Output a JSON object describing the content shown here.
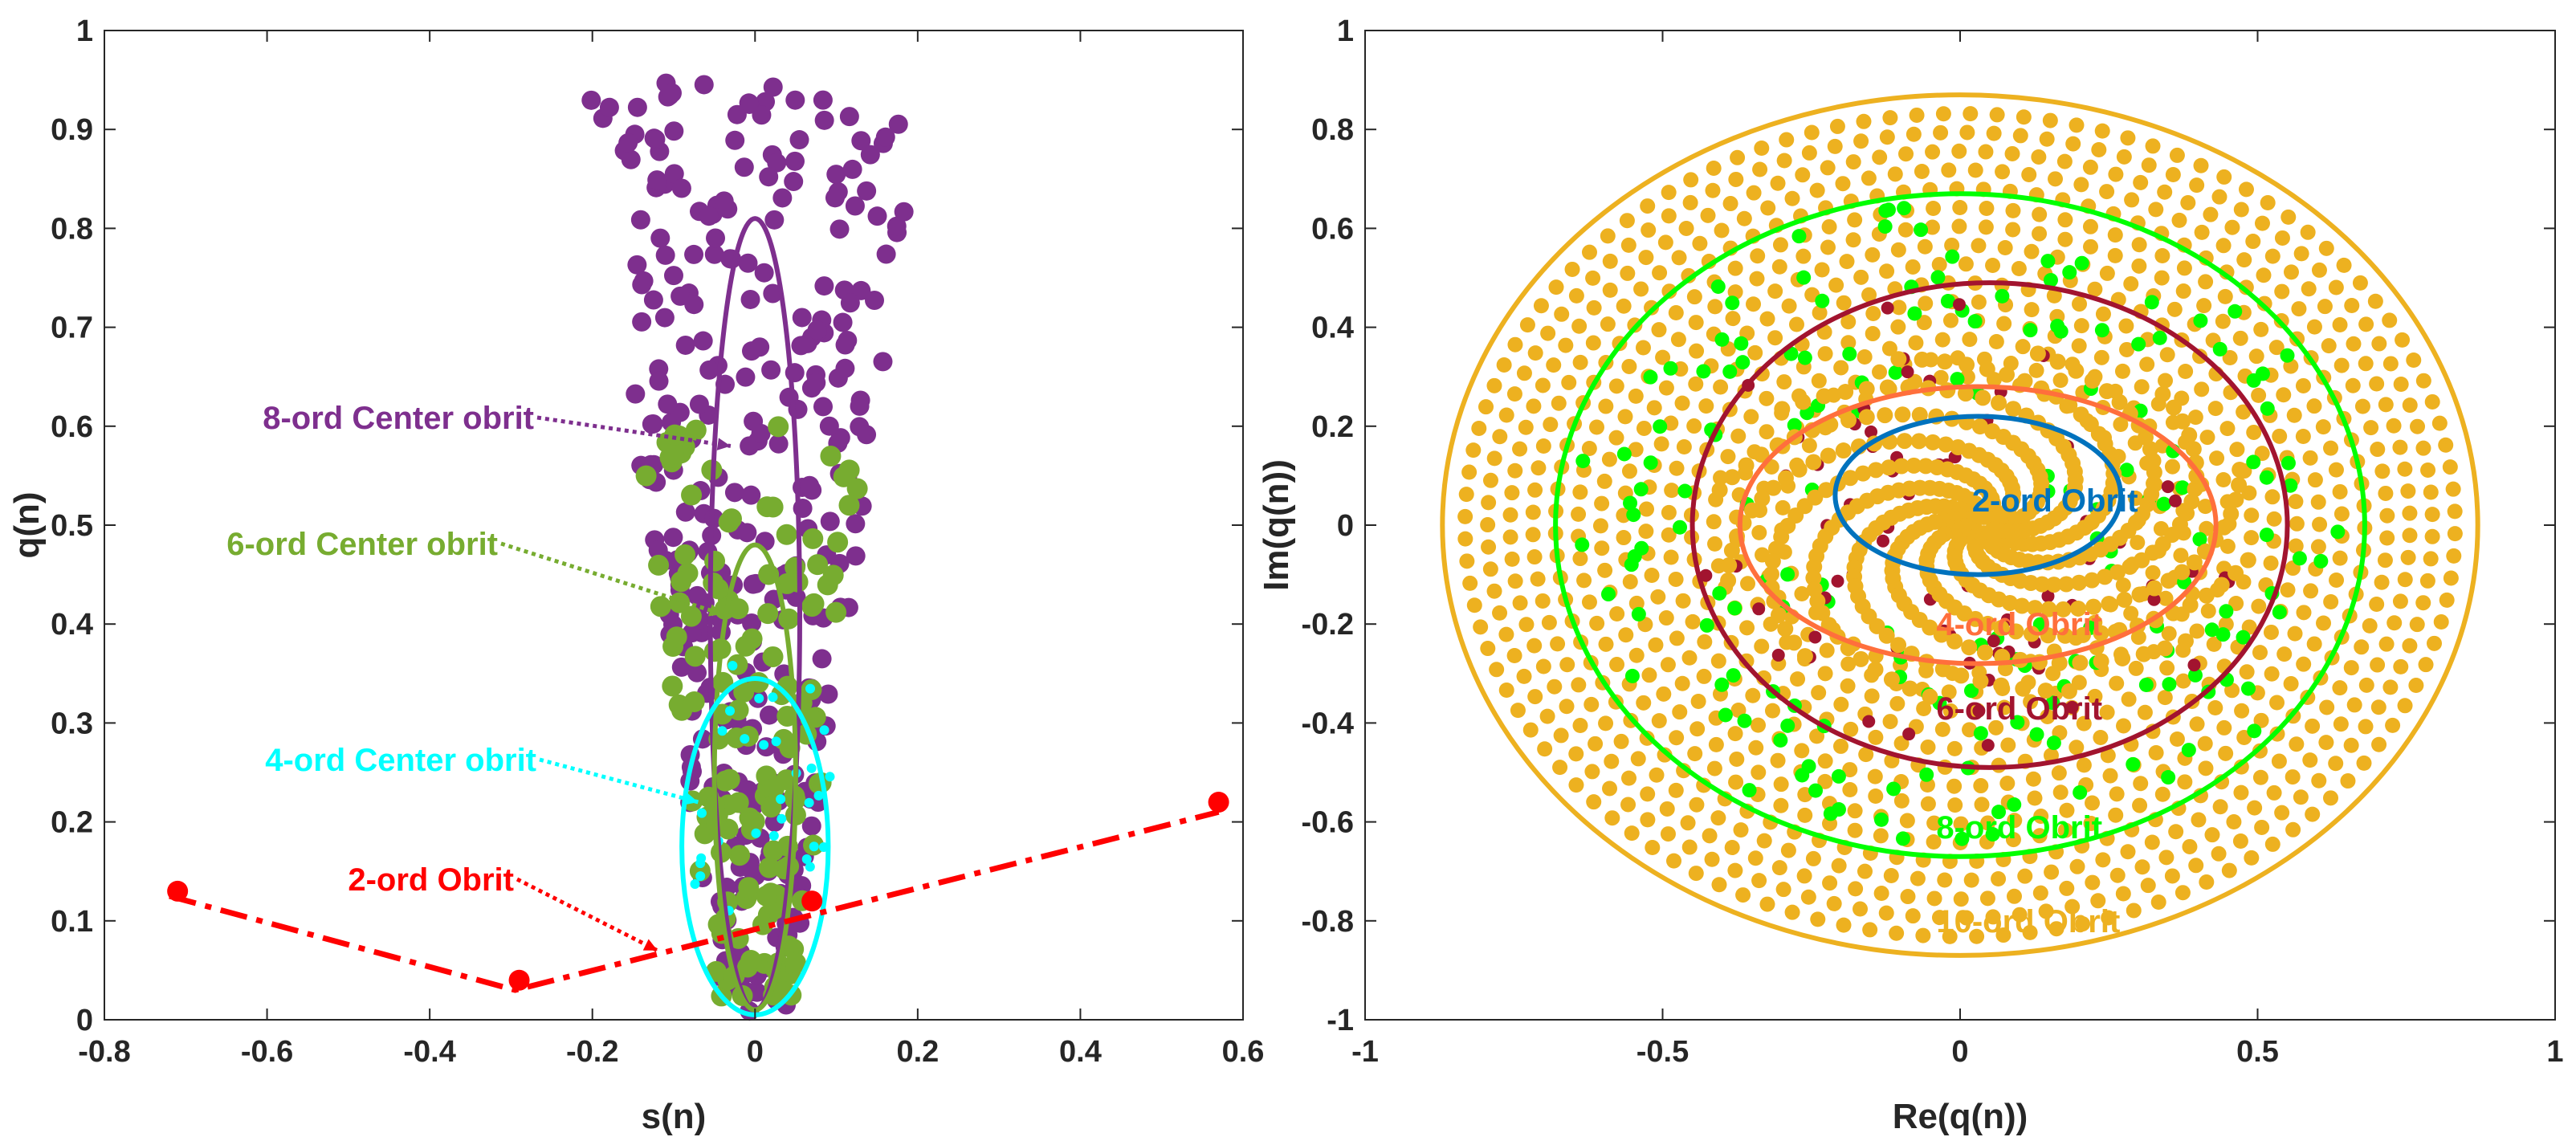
{
  "chart_data": [
    {
      "type": "scatter",
      "id": "left",
      "xlabel": "s(n)",
      "ylabel": "q(n)",
      "xlim": [
        -0.8,
        0.6
      ],
      "ylim": [
        0,
        1
      ],
      "xticks": [
        -0.8,
        -0.6,
        -0.4,
        -0.2,
        0,
        0.2,
        0.4,
        0.6
      ],
      "xtick_labels": [
        "-0.8",
        "-0.6",
        "-0.4",
        "-0.2",
        "0",
        "0.2",
        "0.4",
        "0.6"
      ],
      "yticks": [
        0,
        0.1,
        0.2,
        0.3,
        0.4,
        0.5,
        0.6,
        0.7,
        0.8,
        0.9,
        1
      ],
      "ytick_labels": [
        "0",
        "0.1",
        "0.2",
        "0.3",
        "0.4",
        "0.5",
        "0.6",
        "0.7",
        "0.8",
        "0.9",
        "1"
      ],
      "series": [
        {
          "name": "8-ord Center obrit",
          "color": "#7E2F8E",
          "kind": "scatter-cloud",
          "x_range": [
            -0.2,
            0.2
          ],
          "y_range": [
            0,
            0.95
          ]
        },
        {
          "name": "6-ord Center obrit",
          "color": "#77AC30",
          "kind": "scatter-cloud",
          "x_range": [
            -0.15,
            0.15
          ],
          "y_range": [
            0.02,
            0.6
          ]
        },
        {
          "name": "4-ord Center obrit",
          "color": "#00FFFF",
          "kind": "scatter-cloud",
          "x_range": [
            -0.08,
            0.1
          ],
          "y_range": [
            0.08,
            0.36
          ]
        },
        {
          "name": "8-ord orbit curve",
          "color": "#7E2F8E",
          "kind": "ellipse",
          "center": [
            0,
            0.41
          ],
          "radii": [
            0.055,
            0.4
          ]
        },
        {
          "name": "6-ord orbit curve",
          "color": "#77AC30",
          "kind": "ellipse",
          "center": [
            0,
            0.245
          ],
          "radii": [
            0.05,
            0.235
          ]
        },
        {
          "name": "4-ord orbit curve",
          "color": "#00FFFF",
          "kind": "ellipse",
          "center": [
            0,
            0.175
          ],
          "radii": [
            0.09,
            0.17
          ]
        },
        {
          "name": "2-ord Obrit",
          "color": "#FF0000",
          "kind": "dash-dot-line",
          "x": [
            -0.72,
            -0.295,
            0.57
          ],
          "y": [
            0.125,
            0.03,
            0.21
          ],
          "markers": [
            [
              -0.71,
              0.13
            ],
            [
              -0.29,
              0.04
            ],
            [
              0.57,
              0.22
            ],
            [
              0.07,
              0.12
            ]
          ]
        }
      ],
      "annotations": [
        {
          "text": "8-ord Center obrit",
          "color": "#7E2F8E",
          "target": [
            -0.03,
            0.58
          ]
        },
        {
          "text": "6-ord Center obrit",
          "color": "#77AC30",
          "target": [
            -0.04,
            0.41
          ]
        },
        {
          "text": "4-ord Center obrit",
          "color": "#00FFFF",
          "target": [
            -0.07,
            0.22
          ]
        },
        {
          "text": "2-ord Obrit",
          "color": "#FF0000",
          "target": [
            -0.12,
            0.07
          ]
        }
      ]
    },
    {
      "type": "scatter",
      "id": "right",
      "xlabel": "Re(q(n))",
      "ylabel": "Im(q(n))",
      "xlim": [
        -1,
        1
      ],
      "ylim": [
        -1,
        1
      ],
      "xticks": [
        -1,
        -0.5,
        0,
        0.5,
        1
      ],
      "xtick_labels": [
        "-1",
        "-0.5",
        "0",
        "0.5",
        "1"
      ],
      "yticks": [
        -1,
        -0.8,
        -0.6,
        -0.4,
        -0.2,
        0,
        0.2,
        0.4,
        0.6,
        0.8,
        1
      ],
      "ytick_labels": [
        "-1",
        "-0.8",
        "-0.6",
        "-0.4",
        "-0.2",
        "0",
        "0.2",
        "0.4",
        "0.6",
        "0.8",
        "1"
      ],
      "series": [
        {
          "name": "10-ord Obrit",
          "color": "#EDB120",
          "kind": "ellipse-with-spiral-cloud",
          "center": [
            0,
            0
          ],
          "radii": [
            0.87,
            0.87
          ],
          "cloud_radius": 0.86
        },
        {
          "name": "8-ord Obrit",
          "color": "#00FF00",
          "kind": "ellipse-with-cloud",
          "center": [
            0,
            0
          ],
          "radii": [
            0.68,
            0.67
          ],
          "cloud_radius": 0.65
        },
        {
          "name": "6-ord Obrit",
          "color": "#A2142F",
          "kind": "ellipse-with-cloud",
          "center": [
            0.05,
            0
          ],
          "radii": [
            0.5,
            0.49
          ],
          "cloud_radius": 0.48
        },
        {
          "name": "4-ord Obrit",
          "color": "#FF6F3C",
          "kind": "ellipse",
          "center": [
            0.03,
            0
          ],
          "radii": [
            0.4,
            0.28
          ]
        },
        {
          "name": "2-ord Obrit",
          "color": "#0072BD",
          "kind": "ellipse",
          "center": [
            0.03,
            0.06
          ],
          "radii": [
            0.24,
            0.16
          ]
        }
      ],
      "annotations": [
        {
          "text": "2-ord Obrit",
          "color": "#0072BD",
          "at": [
            0.02,
            0.05
          ]
        },
        {
          "text": "4-ord Obrit",
          "color": "#FF6F3C",
          "at": [
            -0.04,
            -0.2
          ]
        },
        {
          "text": "6-ord Obrit",
          "color": "#A2142F",
          "at": [
            -0.04,
            -0.37
          ]
        },
        {
          "text": "8-ord Obrit",
          "color": "#00FF00",
          "at": [
            -0.04,
            -0.61
          ]
        },
        {
          "text": "10-ord Obrit",
          "color": "#EDB120",
          "at": [
            -0.04,
            -0.8
          ]
        }
      ]
    }
  ]
}
